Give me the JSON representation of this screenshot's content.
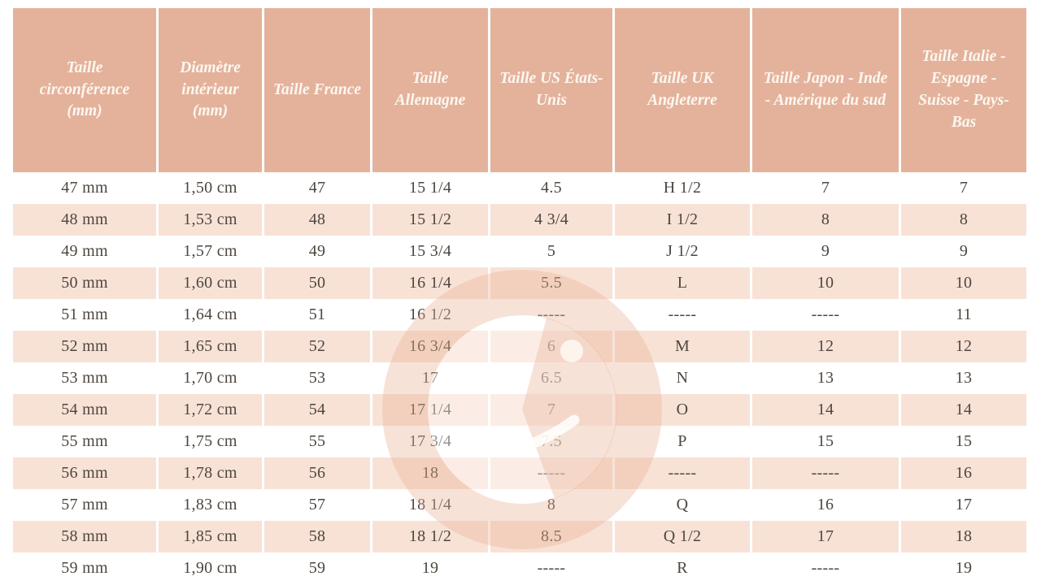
{
  "table": {
    "columns": [
      "Taille circonférence (mm)",
      "Diamètre intérieur (mm)",
      "Taille France",
      "Taille Allemagne",
      "Taille US États-Unis",
      "Taille UK Angleterre",
      "Taille Japon - Inde - Amérique du sud",
      "Taille Italie - Espagne - Suisse - Pays-Bas"
    ],
    "rows": [
      [
        "47 mm",
        "1,50 cm",
        "47",
        "15 1/4",
        "4.5",
        "H 1/2",
        "7",
        "7"
      ],
      [
        "48 mm",
        "1,53 cm",
        "48",
        "15 1/2",
        "4 3/4",
        "I 1/2",
        "8",
        "8"
      ],
      [
        "49 mm",
        "1,57 cm",
        "49",
        "15 3/4",
        "5",
        "J 1/2",
        "9",
        "9"
      ],
      [
        "50 mm",
        "1,60 cm",
        "50",
        "16 1/4",
        "5.5",
        "L",
        "10",
        "10"
      ],
      [
        "51 mm",
        "1,64 cm",
        "51",
        "16 1/2",
        "-----",
        "-----",
        "-----",
        "11"
      ],
      [
        "52 mm",
        "1,65 cm",
        "52",
        "16 3/4",
        "6",
        "M",
        "12",
        "12"
      ],
      [
        "53 mm",
        "1,70 cm",
        "53",
        "17",
        "6.5",
        "N",
        "13",
        "13"
      ],
      [
        "54 mm",
        "1,72 cm",
        "54",
        "17 1/4",
        "7",
        "O",
        "14",
        "14"
      ],
      [
        "55 mm",
        "1,75 cm",
        "55",
        "17 3/4",
        "7.5",
        "P",
        "15",
        "15"
      ],
      [
        "56 mm",
        "1,78 cm",
        "56",
        "18",
        "-----",
        "-----",
        "-----",
        "16"
      ],
      [
        "57 mm",
        "1,83 cm",
        "57",
        "18 1/4",
        "8",
        "Q",
        "16",
        "17"
      ],
      [
        "58 mm",
        "1,85 cm",
        "58",
        "18 1/2",
        "8.5",
        "Q 1/2",
        "17",
        "18"
      ],
      [
        "59 mm",
        "1,90 cm",
        "59",
        "19",
        "-----",
        "R",
        "-----",
        "19"
      ]
    ]
  },
  "colors": {
    "header_background": "#e4b29b",
    "header_text": "#fcf7f1",
    "stripe_background": "#f8e2d6",
    "row_background": "#ffffff",
    "body_text": "#4d463f",
    "watermark_pink": "#eab298"
  },
  "watermark": {
    "icon": "g-logo-watermark-icon"
  }
}
